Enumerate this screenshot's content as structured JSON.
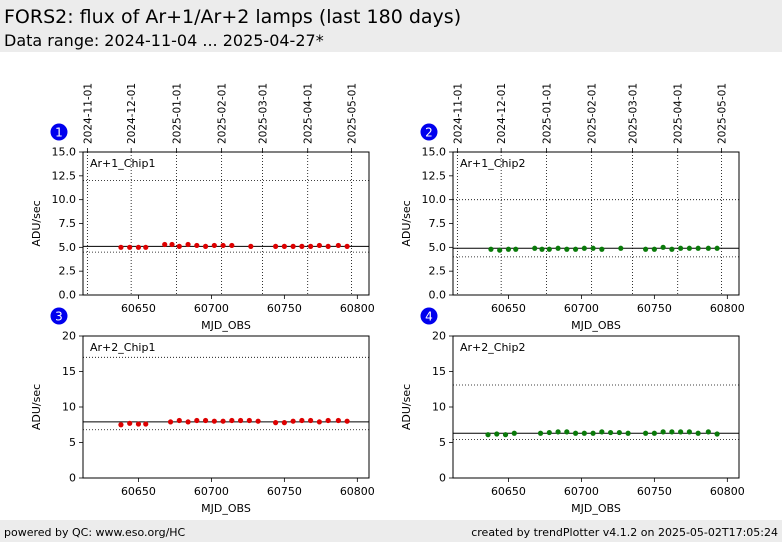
{
  "header": {
    "title": "FORS2: flux of Ar+1/Ar+2 lamps (last 180 days)",
    "subtitle": "Data range: 2024-11-04 ... 2025-04-27*"
  },
  "footer": {
    "left": "powered by QC: www.eso.org/HC",
    "right": "created by trendPlotter v4.1.2 on 2025-05-02T17:05:24"
  },
  "colors": {
    "red_points": "#dd0000",
    "green_points": "#0a7a0a",
    "badge": "#0000ee"
  },
  "chart_data": [
    {
      "type": "scatter",
      "badge": "1",
      "label": "Ar+1_Chip1",
      "xlabel": "MJD_OBS",
      "ylabel": "ADU/sec",
      "xlim": [
        60612,
        60808
      ],
      "ylim": [
        0,
        15
      ],
      "xticks": [
        60650,
        60700,
        60750,
        60800
      ],
      "yticks": [
        0.0,
        2.5,
        5.0,
        7.5,
        10.0,
        12.5,
        15.0
      ],
      "ytick_labels": [
        "0.0",
        "2.5",
        "5.0",
        "7.5",
        "10.0",
        "12.5",
        "15.0"
      ],
      "date_ticks": [
        {
          "mjd": 60615,
          "label": "2024-11-01"
        },
        {
          "mjd": 60645,
          "label": "2024-12-01"
        },
        {
          "mjd": 60676,
          "label": "2025-01-01"
        },
        {
          "mjd": 60707,
          "label": "2025-02-01"
        },
        {
          "mjd": 60735,
          "label": "2025-03-01"
        },
        {
          "mjd": 60766,
          "label": "2025-04-01"
        },
        {
          "mjd": 60796,
          "label": "2025-05-01"
        }
      ],
      "ref_lines": {
        "median": 5.1,
        "upper": 12.0,
        "lower": 4.5
      },
      "point_color": "#dd0000",
      "x": [
        60638,
        60644,
        60650,
        60655,
        60668,
        60673,
        60678,
        60684,
        60690,
        60696,
        60702,
        60708,
        60714,
        60727,
        60744,
        60750,
        60756,
        60762,
        60768,
        60774,
        60780,
        60787,
        60793
      ],
      "y": [
        5.0,
        5.0,
        5.0,
        5.0,
        5.3,
        5.3,
        5.1,
        5.3,
        5.2,
        5.1,
        5.2,
        5.2,
        5.2,
        5.1,
        5.1,
        5.1,
        5.1,
        5.1,
        5.1,
        5.2,
        5.1,
        5.2,
        5.1
      ]
    },
    {
      "type": "scatter",
      "badge": "2",
      "label": "Ar+1_Chip2",
      "xlabel": "MJD_OBS",
      "ylabel": "ADU/sec",
      "xlim": [
        60612,
        60808
      ],
      "ylim": [
        0,
        15
      ],
      "xticks": [
        60650,
        60700,
        60750,
        60800
      ],
      "yticks": [
        0.0,
        2.5,
        5.0,
        7.5,
        10.0,
        12.5,
        15.0
      ],
      "ytick_labels": [
        "0.0",
        "2.5",
        "5.0",
        "7.5",
        "10.0",
        "12.5",
        "15.0"
      ],
      "date_ticks": [
        {
          "mjd": 60615,
          "label": "2024-11-01"
        },
        {
          "mjd": 60645,
          "label": "2024-12-01"
        },
        {
          "mjd": 60676,
          "label": "2025-01-01"
        },
        {
          "mjd": 60707,
          "label": "2025-02-01"
        },
        {
          "mjd": 60735,
          "label": "2025-03-01"
        },
        {
          "mjd": 60766,
          "label": "2025-04-01"
        },
        {
          "mjd": 60796,
          "label": "2025-05-01"
        }
      ],
      "ref_lines": {
        "median": 4.9,
        "upper": 10.0,
        "lower": 4.0
      },
      "point_color": "#0a7a0a",
      "x": [
        60638,
        60644,
        60650,
        60655,
        60668,
        60673,
        60678,
        60684,
        60690,
        60696,
        60702,
        60708,
        60714,
        60727,
        60744,
        60750,
        60756,
        60762,
        60768,
        60774,
        60780,
        60787,
        60793
      ],
      "y": [
        4.8,
        4.7,
        4.8,
        4.8,
        4.9,
        4.8,
        4.8,
        4.9,
        4.8,
        4.8,
        4.9,
        4.9,
        4.8,
        4.9,
        4.8,
        4.8,
        5.0,
        4.8,
        4.9,
        4.9,
        4.9,
        4.9,
        4.9
      ]
    },
    {
      "type": "scatter",
      "badge": "3",
      "label": "Ar+2_Chip1",
      "xlabel": "MJD_OBS",
      "ylabel": "ADU/sec",
      "xlim": [
        60612,
        60808
      ],
      "ylim": [
        0,
        20
      ],
      "xticks": [
        60650,
        60700,
        60750,
        60800
      ],
      "yticks": [
        0,
        5,
        10,
        15,
        20
      ],
      "ytick_labels": [
        "0",
        "5",
        "10",
        "15",
        "20"
      ],
      "date_ticks": [],
      "ref_lines": {
        "median": 7.9,
        "upper": 17.0,
        "lower": 6.8
      },
      "point_color": "#dd0000",
      "x": [
        60638,
        60644,
        60650,
        60655,
        60672,
        60678,
        60684,
        60690,
        60696,
        60702,
        60708,
        60714,
        60720,
        60726,
        60732,
        60744,
        60750,
        60756,
        60762,
        60768,
        60774,
        60780,
        60787,
        60793
      ],
      "y": [
        7.5,
        7.7,
        7.6,
        7.6,
        7.9,
        8.1,
        7.9,
        8.1,
        8.1,
        8.0,
        8.0,
        8.1,
        8.1,
        8.1,
        8.0,
        7.8,
        7.8,
        8.0,
        8.1,
        8.1,
        7.9,
        8.1,
        8.1,
        8.0
      ]
    },
    {
      "type": "scatter",
      "badge": "4",
      "label": "Ar+2_Chip2",
      "xlabel": "MJD_OBS",
      "ylabel": "ADU/sec",
      "xlim": [
        60612,
        60808
      ],
      "ylim": [
        0,
        20
      ],
      "xticks": [
        60650,
        60700,
        60750,
        60800
      ],
      "yticks": [
        0,
        5,
        10,
        15,
        20
      ],
      "ytick_labels": [
        "0",
        "5",
        "10",
        "15",
        "20"
      ],
      "date_ticks": [],
      "ref_lines": {
        "median": 6.3,
        "upper": 13.1,
        "lower": 5.4
      },
      "point_color": "#0a7a0a",
      "x": [
        60636,
        60642,
        60648,
        60654,
        60672,
        60678,
        60684,
        60690,
        60696,
        60702,
        60708,
        60714,
        60720,
        60726,
        60732,
        60744,
        60750,
        60756,
        60762,
        60768,
        60774,
        60780,
        60787,
        60793
      ],
      "y": [
        6.1,
        6.2,
        6.1,
        6.3,
        6.3,
        6.4,
        6.5,
        6.5,
        6.3,
        6.3,
        6.3,
        6.5,
        6.4,
        6.4,
        6.3,
        6.3,
        6.3,
        6.5,
        6.5,
        6.5,
        6.5,
        6.3,
        6.5,
        6.2
      ]
    }
  ]
}
